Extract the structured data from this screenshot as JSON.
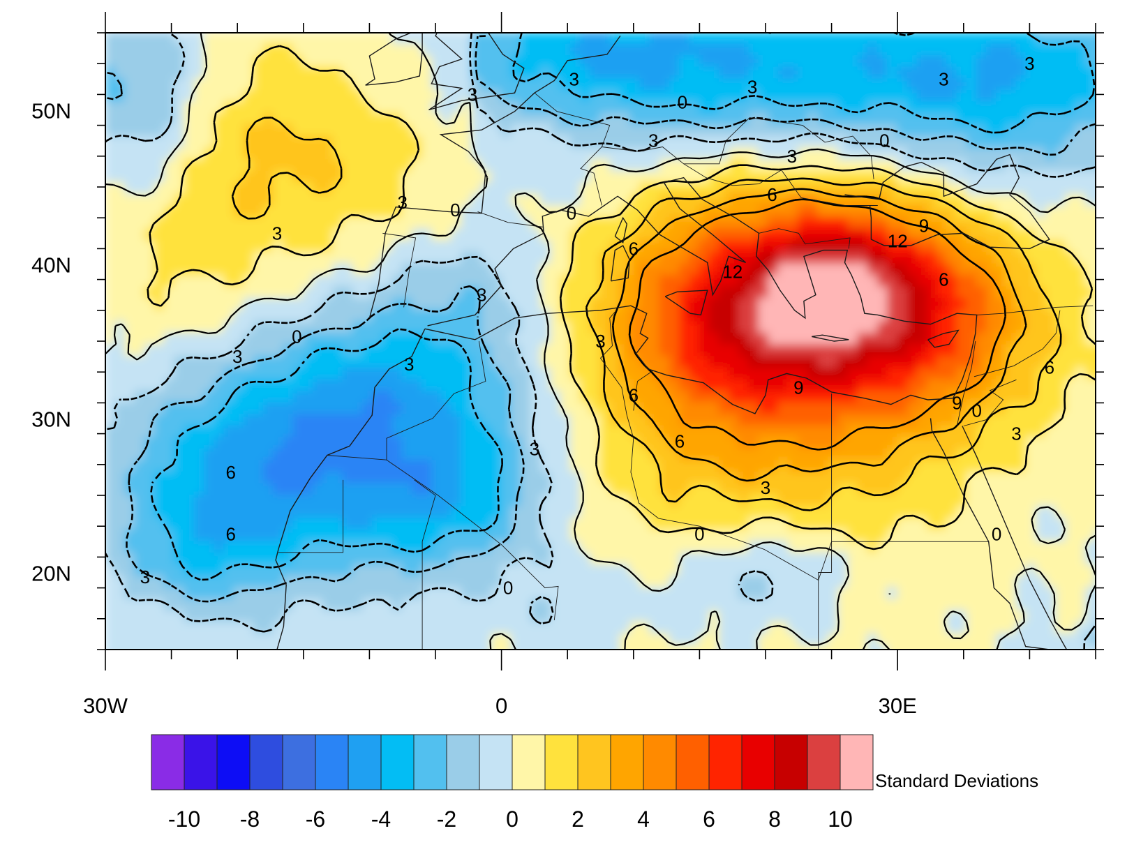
{
  "map": {
    "lon_range": [
      -30,
      45
    ],
    "lat_range": [
      15,
      55
    ],
    "lon_ticks": [
      {
        "value": -30,
        "label": "30W"
      },
      {
        "value": 0,
        "label": "0"
      },
      {
        "value": 30,
        "label": "30E"
      }
    ],
    "lat_ticks": [
      {
        "value": 50,
        "label": "50N"
      },
      {
        "value": 40,
        "label": "40N"
      },
      {
        "value": 30,
        "label": "30N"
      },
      {
        "value": 20,
        "label": "20N"
      }
    ],
    "contour_levels": [
      -9,
      -6,
      -3,
      0,
      3,
      6,
      9,
      12
    ],
    "contour_style": "negative dashed, non-negative solid",
    "contour_labels": [
      {
        "text": "3",
        "lon": -17.0,
        "lat": 42.0
      },
      {
        "text": "0",
        "lon": -15.5,
        "lat": 35.3
      },
      {
        "text": "3",
        "lon": -20.0,
        "lat": 34.0
      },
      {
        "text": "3",
        "lon": -7.5,
        "lat": 44.0
      },
      {
        "text": "3",
        "lon": -2.2,
        "lat": 51.0
      },
      {
        "text": "0",
        "lon": -3.5,
        "lat": 43.5
      },
      {
        "text": "0",
        "lon": 5.3,
        "lat": 43.3
      },
      {
        "text": "3",
        "lon": -1.5,
        "lat": 38.0
      },
      {
        "text": "3",
        "lon": -7.0,
        "lat": 33.5
      },
      {
        "text": "3",
        "lon": 2.5,
        "lat": 28.0
      },
      {
        "text": "6",
        "lon": -20.5,
        "lat": 26.5
      },
      {
        "text": "6",
        "lon": -20.5,
        "lat": 22.5
      },
      {
        "text": "3",
        "lon": -27.0,
        "lat": 19.7
      },
      {
        "text": "0",
        "lon": 0.5,
        "lat": 19.0
      },
      {
        "text": "3",
        "lon": 5.5,
        "lat": 52.0
      },
      {
        "text": "0",
        "lon": 13.7,
        "lat": 50.5
      },
      {
        "text": "3",
        "lon": 19.0,
        "lat": 51.5
      },
      {
        "text": "3",
        "lon": 33.5,
        "lat": 52.0
      },
      {
        "text": "3",
        "lon": 40.0,
        "lat": 53.0
      },
      {
        "text": "0",
        "lon": 29.0,
        "lat": 48.0
      },
      {
        "text": "3",
        "lon": 11.5,
        "lat": 48.0
      },
      {
        "text": "3",
        "lon": 22.0,
        "lat": 47.0
      },
      {
        "text": "6",
        "lon": 20.5,
        "lat": 44.5
      },
      {
        "text": "6",
        "lon": 10.0,
        "lat": 41.0
      },
      {
        "text": "9",
        "lon": 32.0,
        "lat": 42.5
      },
      {
        "text": "12",
        "lon": 30.0,
        "lat": 41.5
      },
      {
        "text": "12",
        "lon": 17.5,
        "lat": 39.5
      },
      {
        "text": "6",
        "lon": 33.5,
        "lat": 39.0
      },
      {
        "text": "3",
        "lon": 7.5,
        "lat": 35.0
      },
      {
        "text": "6",
        "lon": 10.0,
        "lat": 31.5
      },
      {
        "text": "9",
        "lon": 22.5,
        "lat": 32.0
      },
      {
        "text": "9",
        "lon": 34.5,
        "lat": 31.0
      },
      {
        "text": "0",
        "lon": 36.0,
        "lat": 30.5
      },
      {
        "text": "6",
        "lon": 41.5,
        "lat": 33.3
      },
      {
        "text": "6",
        "lon": 13.5,
        "lat": 28.5
      },
      {
        "text": "3",
        "lon": 20.0,
        "lat": 25.5
      },
      {
        "text": "3",
        "lon": 39.0,
        "lat": 29.0
      },
      {
        "text": "0",
        "lon": 15.0,
        "lat": 22.5
      },
      {
        "text": "0",
        "lon": 37.5,
        "lat": 22.5
      }
    ]
  },
  "colorbar": {
    "title": "Standard Deviations",
    "colors": [
      "#8a2ce6",
      "#3a13e8",
      "#0d0df5",
      "#2e4ddf",
      "#3d6fe0",
      "#2a84f5",
      "#1fa0f2",
      "#03bdf4",
      "#52c0ef",
      "#9acde8",
      "#c5e3f4",
      "#fff6a8",
      "#ffe23d",
      "#ffc51f",
      "#ffa500",
      "#ff8a00",
      "#ff6000",
      "#ff2400",
      "#e80000",
      "#c70000",
      "#db4040",
      "#ffb6b6"
    ],
    "tick_values": [
      "-10",
      "-8",
      "-6",
      "-4",
      "-2",
      "0",
      "2",
      "4",
      "6",
      "8",
      "10"
    ]
  },
  "hotspots": [
    {
      "lon": -15,
      "lat": 46,
      "sx": 9,
      "sy": 8,
      "v": 4.2
    },
    {
      "lon": -16,
      "lat": 49,
      "sx": 4,
      "sy": 4,
      "v": 1.2
    },
    {
      "lon": -25,
      "lat": 40,
      "sx": 5,
      "sy": 7,
      "v": 1.5
    },
    {
      "lon": -28,
      "lat": 52,
      "sx": 4,
      "sy": 4,
      "v": -4.5
    },
    {
      "lon": -27,
      "lat": 47,
      "sx": 3,
      "sy": 3,
      "v": -2.0
    },
    {
      "lon": -20,
      "lat": 26,
      "sx": 7,
      "sy": 5,
      "v": -8.0
    },
    {
      "lon": -23,
      "lat": 21,
      "sx": 4,
      "sy": 2.5,
      "v": -3.0
    },
    {
      "lon": -8,
      "lat": 30,
      "sx": 7,
      "sy": 6,
      "v": -6.0
    },
    {
      "lon": -3,
      "lat": 24,
      "sx": 5,
      "sy": 3,
      "v": -4.0
    },
    {
      "lon": -2,
      "lat": 39,
      "sx": 4,
      "sy": 3,
      "v": -2.5
    },
    {
      "lon": 3,
      "lat": 44,
      "sx": 4,
      "sy": 2,
      "v": -1.2
    },
    {
      "lon": 25,
      "lat": 38,
      "sx": 8,
      "sy": 4.5,
      "v": 8.0
    },
    {
      "lon": 25.5,
      "lat": 38.5,
      "sx": 3,
      "sy": 2.2,
      "v": 4.5
    },
    {
      "lon": 16,
      "lat": 34,
      "sx": 6,
      "sy": 4,
      "v": 2.2
    },
    {
      "lon": 33,
      "lat": 36,
      "sx": 5,
      "sy": 4,
      "v": 3.0
    },
    {
      "lon": 18,
      "lat": 26,
      "sx": 10,
      "sy": 6,
      "v": 2.0
    },
    {
      "lon": 20,
      "lat": 20,
      "sx": 5,
      "sy": 2.5,
      "v": -4.5
    },
    {
      "lon": 6,
      "lat": 18,
      "sx": 4,
      "sy": 2,
      "v": -2.5
    },
    {
      "lon": 20,
      "lat": 52,
      "sx": 14,
      "sy": 4,
      "v": -4.5
    },
    {
      "lon": 38,
      "lat": 50,
      "sx": 7,
      "sy": 5,
      "v": -4.0
    },
    {
      "lon": 8,
      "lat": 55,
      "sx": 7,
      "sy": 3,
      "v": -3.0
    },
    {
      "lon": 44,
      "lat": 16,
      "sx": 2,
      "sy": 1.5,
      "v": -3.5
    },
    {
      "lon": 43.5,
      "lat": 17,
      "sx": 1,
      "sy": 1,
      "v": 4.0
    },
    {
      "lon": 40,
      "lat": 25,
      "sx": 5,
      "sy": 4,
      "v": -1.0
    }
  ]
}
